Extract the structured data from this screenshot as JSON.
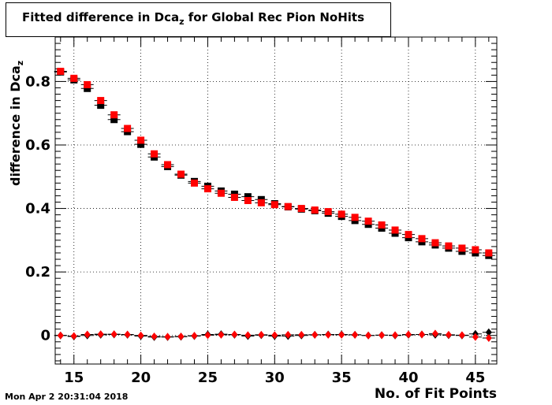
{
  "title": {
    "prefix": "Fitted difference in Dca",
    "sub": "z",
    "suffix": " for Global Rec Pion NoHits"
  },
  "footer": "Mon Apr  2 20:31:04 2018",
  "chart_data": {
    "type": "scatter",
    "title": "Fitted difference in Dca_z for Global Rec Pion NoHits",
    "xlabel": "No. of Fit Points",
    "ylabel": {
      "prefix": "difference in Dca",
      "sub": "z"
    },
    "xlim": [
      13.6,
      46.6
    ],
    "ylim": [
      -0.09,
      0.94
    ],
    "xticks": [
      15,
      20,
      25,
      30,
      35,
      40,
      45
    ],
    "yticks": [
      0,
      0.2,
      0.4,
      0.6,
      0.8
    ],
    "grid": true,
    "x": [
      14,
      15,
      16,
      17,
      18,
      19,
      20,
      21,
      22,
      23,
      24,
      25,
      26,
      27,
      28,
      29,
      30,
      31,
      32,
      33,
      34,
      35,
      36,
      37,
      38,
      39,
      40,
      41,
      42,
      43,
      44,
      45,
      46
    ],
    "series": [
      {
        "color": "#000000",
        "marker": "square",
        "values": [
          0.83,
          0.805,
          0.778,
          0.725,
          0.68,
          0.642,
          0.602,
          0.562,
          0.532,
          0.505,
          0.485,
          0.47,
          0.455,
          0.445,
          0.437,
          0.428,
          0.415,
          0.405,
          0.398,
          0.393,
          0.385,
          0.375,
          0.362,
          0.35,
          0.338,
          0.322,
          0.308,
          0.295,
          0.285,
          0.275,
          0.265,
          0.26,
          0.252
        ]
      },
      {
        "color": "#ff0000",
        "marker": "square",
        "values": [
          0.832,
          0.81,
          0.79,
          0.74,
          0.695,
          0.652,
          0.615,
          0.572,
          0.538,
          0.508,
          0.48,
          0.462,
          0.448,
          0.435,
          0.425,
          0.418,
          0.412,
          0.406,
          0.4,
          0.395,
          0.39,
          0.382,
          0.372,
          0.36,
          0.348,
          0.332,
          0.318,
          0.305,
          0.292,
          0.282,
          0.275,
          0.27,
          0.26
        ]
      },
      {
        "color": "#000000",
        "marker": "diamond",
        "values": [
          0.0,
          -0.003,
          0.0,
          0.002,
          0.003,
          0.002,
          -0.002,
          -0.005,
          -0.005,
          -0.004,
          -0.002,
          0.003,
          0.004,
          0.002,
          -0.002,
          0.001,
          -0.002,
          -0.002,
          0.0,
          0.002,
          0.003,
          0.003,
          0.002,
          0.0,
          0.001,
          0.0,
          0.002,
          0.003,
          0.002,
          0.001,
          0.0,
          0.005,
          0.01
        ]
      },
      {
        "color": "#ff0000",
        "marker": "diamond",
        "values": [
          0.0,
          -0.002,
          0.003,
          0.004,
          0.004,
          0.003,
          0.0,
          -0.003,
          -0.004,
          -0.003,
          -0.001,
          0.001,
          0.002,
          0.003,
          0.001,
          0.002,
          0.001,
          0.002,
          0.002,
          0.002,
          0.002,
          0.002,
          0.002,
          0.0,
          0.001,
          0.001,
          0.003,
          0.003,
          0.006,
          0.002,
          0.001,
          -0.005,
          -0.008
        ]
      }
    ]
  }
}
